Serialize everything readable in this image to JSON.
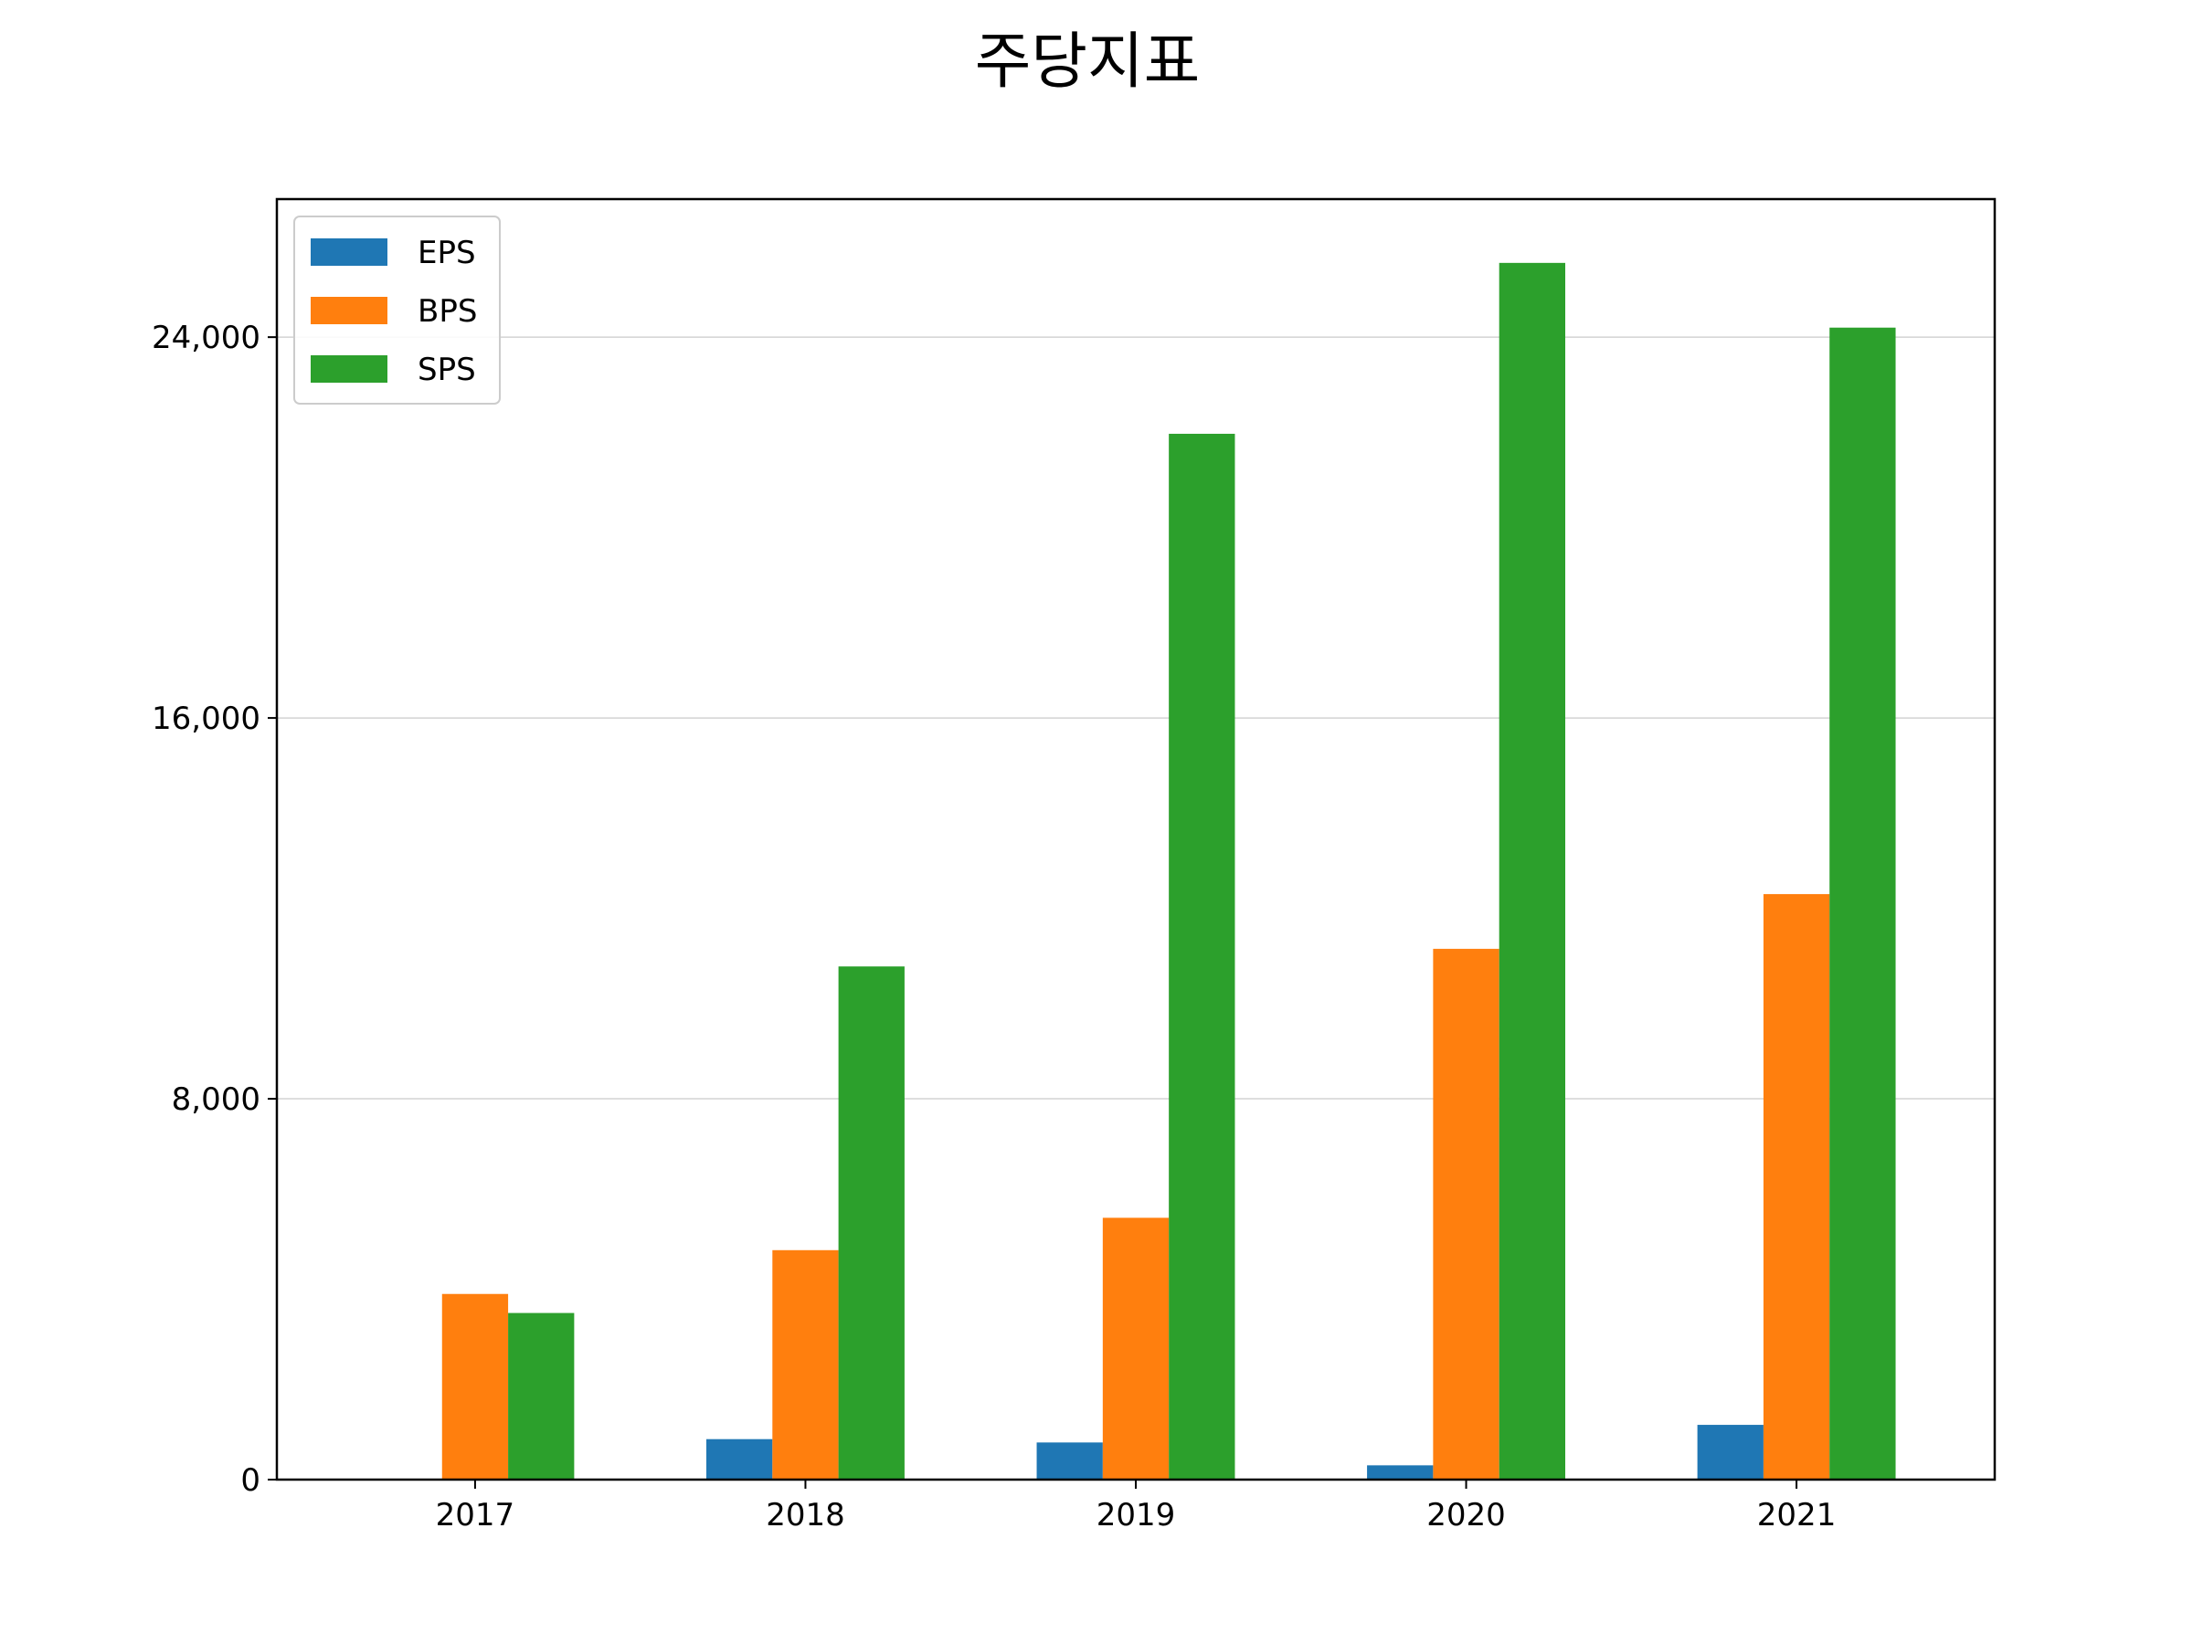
{
  "chart_data": {
    "type": "bar",
    "title": "주당지표",
    "xlabel": "",
    "ylabel": "",
    "categories": [
      "2017",
      "2018",
      "2019",
      "2020",
      "2021"
    ],
    "series": [
      {
        "name": "EPS",
        "color": "#1f77b4",
        "values": [
          0,
          850,
          780,
          300,
          1150
        ]
      },
      {
        "name": "BPS",
        "color": "#ff7f0e",
        "values": [
          3900,
          4820,
          5500,
          11150,
          12300
        ]
      },
      {
        "name": "SPS",
        "color": "#2ca02c",
        "values": [
          3500,
          10780,
          21970,
          25560,
          24200
        ]
      }
    ],
    "ylim": [
      0,
      26900
    ],
    "yticks": [
      0,
      8000,
      16000,
      24000
    ],
    "ytick_labels": [
      "0",
      "8,000",
      "16,000",
      "24,000"
    ],
    "grid": "horizontal",
    "legend_position": "upper-left"
  }
}
